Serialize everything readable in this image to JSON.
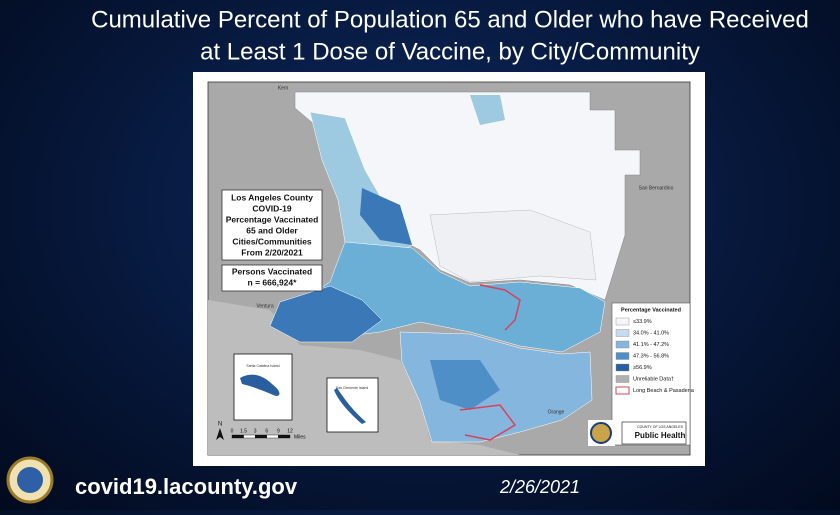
{
  "title": [
    "Cumulative Percent of Population 65 and Older who have Received",
    "at Least 1 Dose of Vaccine, by City/Community"
  ],
  "map": {
    "info_box": [
      "Los Angeles County",
      "COVID-19",
      "Percentage Vaccinated",
      "65 and Older",
      "Cities/Communities",
      "From 2/20/2021"
    ],
    "persons_box": [
      "Persons Vaccinated",
      "n = 666,924*"
    ],
    "legend": {
      "title": "Percentage Vaccinated",
      "items": [
        {
          "label": "≤33.9%",
          "color": "#f4f6fa"
        },
        {
          "label": "34.0% - 41.0%",
          "color": "#c6dbef"
        },
        {
          "label": "41.1% - 47.2%",
          "color": "#85b6dd"
        },
        {
          "label": "47.3% - 56.8%",
          "color": "#4f8fc8"
        },
        {
          "label": "≥56.9%",
          "color": "#2a5f9e"
        },
        {
          "label": "Unreliable Data†",
          "color": "#b0b0b0"
        },
        {
          "label": "Long Beach & Pasadena",
          "color": "#d9415a",
          "outline": true
        }
      ]
    },
    "places": [
      "San Bernardino",
      "Ventura",
      "Orange",
      "Kern"
    ],
    "islands": [
      "Santa Catalina Island",
      "San Clemente Island"
    ],
    "scale": {
      "ticks": [
        "0",
        "1.5",
        "3",
        "6",
        "9",
        "12"
      ],
      "unit": "Miles"
    },
    "logo": [
      "COUNTY OF LOS ANGELES",
      "Public Health"
    ]
  },
  "footer": {
    "url": "covid19.lacounty.gov",
    "date": "2/26/2021"
  }
}
